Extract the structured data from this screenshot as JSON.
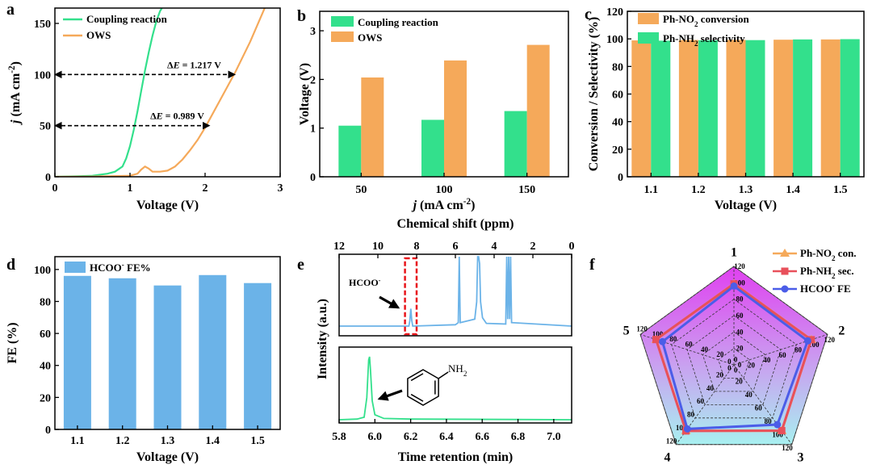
{
  "panels": {
    "a": "a",
    "b": "b",
    "c": "c",
    "d": "d",
    "e": "e",
    "f": "f"
  },
  "chart_data": [
    {
      "id": "a",
      "type": "line",
      "xlabel": "Voltage (V)",
      "ylabel_main": "j",
      "ylabel_unit": " (mA cm",
      "ylabel_sup": "-2",
      "ylabel_end": ")",
      "xlim": [
        0,
        3
      ],
      "ylim": [
        0,
        165
      ],
      "xticks": [
        0,
        1,
        2,
        3
      ],
      "yticks": [
        0,
        50,
        100,
        150
      ],
      "legend_position": "top-left",
      "series": [
        {
          "name": "Coupling reaction",
          "color": "#33e08c",
          "x": [
            0,
            0.3,
            0.5,
            0.7,
            0.8,
            0.9,
            0.95,
            1.0,
            1.05,
            1.1,
            1.15,
            1.2,
            1.25,
            1.3,
            1.35,
            1.4,
            1.45
          ],
          "y": [
            0,
            0.5,
            1,
            3,
            5,
            10,
            18,
            30,
            46,
            64,
            84,
            104,
            122,
            138,
            152,
            162,
            168
          ]
        },
        {
          "name": "OWS",
          "color": "#f5a95a",
          "x": [
            0,
            0.5,
            1.0,
            1.1,
            1.15,
            1.2,
            1.25,
            1.3,
            1.4,
            1.5,
            1.6,
            1.7,
            1.8,
            1.9,
            2.0,
            2.2,
            2.4,
            2.6,
            2.8
          ],
          "y": [
            0,
            0.2,
            1,
            3,
            7,
            10,
            8,
            5,
            5,
            6,
            10,
            17,
            26,
            36,
            48,
            75,
            102,
            132,
            166
          ]
        }
      ],
      "annotations": [
        {
          "label": "ΔE = 1.217 V",
          "y": 100,
          "x_from": 1.18,
          "x_to": 2.4
        },
        {
          "label": "ΔE = 0.989 V",
          "y": 50,
          "x_from": 1.07,
          "x_to": 2.06
        }
      ],
      "ref_lines": [
        {
          "y": 100,
          "x_from": 0,
          "x_to": 2.4
        },
        {
          "y": 50,
          "x_from": 0,
          "x_to": 2.06
        }
      ]
    },
    {
      "id": "b",
      "type": "bar",
      "xlabel_main": "j",
      "xlabel_unit": " (mA cm",
      "xlabel_sup": "-2",
      "xlabel_end": ")",
      "ylabel": "Voltage (V)",
      "ylim": [
        0,
        3.4
      ],
      "yticks": [
        0,
        1,
        2,
        3
      ],
      "categories": [
        "50",
        "100",
        "150"
      ],
      "legend_position": "top-left",
      "series": [
        {
          "name": "Coupling reaction",
          "color": "#33e08c",
          "values": [
            1.05,
            1.17,
            1.35
          ]
        },
        {
          "name": "OWS",
          "color": "#f5a95a",
          "values": [
            2.04,
            2.39,
            2.71
          ]
        }
      ]
    },
    {
      "id": "c",
      "type": "bar",
      "xlabel": "Voltage (V)",
      "ylabel": "Conversion / Selectivity (%)",
      "ylim": [
        0,
        120
      ],
      "yticks": [
        0,
        20,
        40,
        60,
        80,
        100,
        120
      ],
      "categories": [
        "1.1",
        "1.2",
        "1.3",
        "1.4",
        "1.5"
      ],
      "legend_position": "top-left",
      "series": [
        {
          "name_pre": "Ph-NO",
          "name_sub": "2",
          "name_post": " conversion",
          "color": "#f5a95a",
          "values": [
            98.9,
            99.2,
            99.3,
            99.4,
            99.6
          ]
        },
        {
          "name_pre": "Ph-NH",
          "name_sub": "2",
          "name_post": " selectivity",
          "color": "#33e08c",
          "values": [
            98.7,
            99.0,
            99.1,
            99.6,
            99.8
          ]
        }
      ]
    },
    {
      "id": "d",
      "type": "bar",
      "xlabel": "Voltage (V)",
      "ylabel": "FE (%)",
      "ylim": [
        0,
        108
      ],
      "yticks": [
        0,
        20,
        40,
        60,
        80,
        100
      ],
      "categories": [
        "1.1",
        "1.2",
        "1.3",
        "1.4",
        "1.5"
      ],
      "legend_position": "top-left",
      "series": [
        {
          "name_pre": "HCOO",
          "name_sup": "-",
          "name_post": " FE%",
          "color": "#6bb3e8",
          "values": [
            96,
            94.5,
            90,
            96.5,
            91.5
          ]
        }
      ]
    },
    {
      "id": "e_top",
      "type": "line",
      "xlabel": "Chemical shift (ppm)",
      "xticks": [
        12,
        10,
        8,
        6,
        4,
        2,
        0
      ],
      "xlim": [
        12,
        0
      ],
      "label_pre": "HCOO",
      "label_sup": "-",
      "highlight_ppm": [
        8.6,
        8.0
      ],
      "series": [
        {
          "color": "#6bb3e8",
          "x": [
            12,
            8.4,
            8.35,
            8.3,
            8.25,
            8.2,
            6.0,
            5.85,
            5.8,
            5.75,
            5.0,
            4.9,
            4.85,
            4.8,
            4.75,
            4.7,
            4.6,
            4.4,
            3.4,
            3.35,
            3.3,
            3.25,
            3.2,
            3.15,
            3.1,
            0
          ],
          "y": [
            0,
            0,
            0.08,
            0.25,
            0.08,
            0,
            0.02,
            0.05,
            1.0,
            0.05,
            0.1,
            0.35,
            1.0,
            1.0,
            0.9,
            0.35,
            0.12,
            0.04,
            0.03,
            1.0,
            0.1,
            1.0,
            0.1,
            1.0,
            0.05,
            0
          ]
        }
      ]
    },
    {
      "id": "e_bottom",
      "type": "line",
      "xlabel": "Time retention (min)",
      "xticks": [
        5.8,
        6.0,
        6.2,
        6.4,
        6.6,
        6.8,
        7.0
      ],
      "xlim": [
        5.8,
        7.1
      ],
      "label_pre": "NH",
      "label_sub": "2",
      "series": [
        {
          "color": "#33e08c",
          "x": [
            5.8,
            5.9,
            5.94,
            5.955,
            5.965,
            5.97,
            5.975,
            5.985,
            6.0,
            6.05,
            6.2,
            7.1
          ],
          "y": [
            0,
            0.01,
            0.04,
            0.35,
            0.95,
            1.0,
            0.8,
            0.3,
            0.08,
            0.02,
            0.01,
            0
          ]
        }
      ]
    },
    {
      "id": "e_shared",
      "ylabel": "Intensity (a.u.)"
    },
    {
      "id": "f",
      "type": "radar",
      "axes": [
        "1",
        "2",
        "3",
        "4",
        "5"
      ],
      "rlim": [
        0,
        120
      ],
      "rticks": [
        0,
        20,
        40,
        60,
        80,
        100,
        120
      ],
      "legend_position": "top-right",
      "series": [
        {
          "name_pre": "Ph-NO",
          "name_sub": "2",
          "name_post": " con.",
          "color": "#f5a95a",
          "marker": "triangle",
          "values": [
            98.9,
            99.2,
            99.3,
            99.4,
            99.6
          ]
        },
        {
          "name_pre": "Ph-NH",
          "name_sub": "2",
          "name_post": " sec.",
          "color": "#e8505b",
          "marker": "square",
          "values": [
            98.7,
            99.0,
            99.1,
            99.6,
            99.8
          ]
        },
        {
          "name_pre": "HCOO",
          "name_sup": "-",
          "name_post": " FE",
          "color": "#4b5de8",
          "marker": "circle",
          "values": [
            96,
            94.5,
            90,
            96.5,
            91.5
          ]
        }
      ]
    }
  ]
}
